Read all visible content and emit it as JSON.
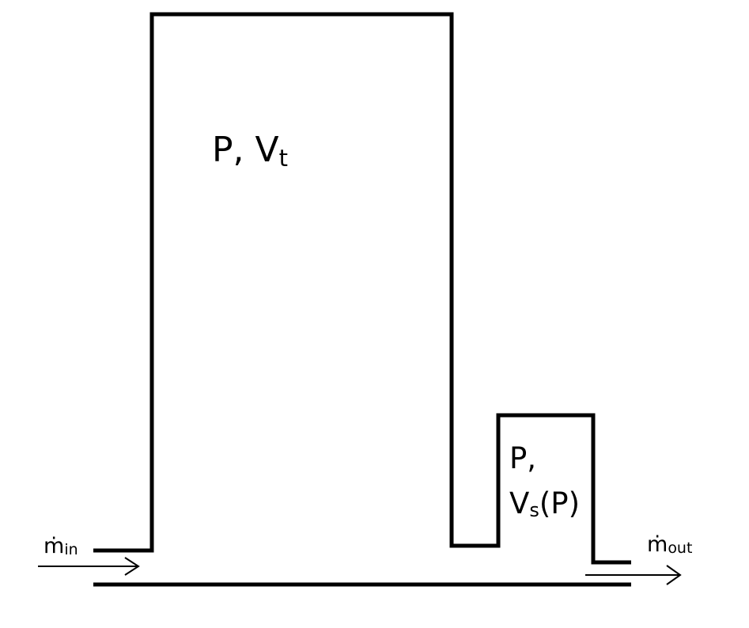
{
  "colors": {
    "stroke": "#000000",
    "background": "#ffffff"
  },
  "tank_label": {
    "main": "P, V",
    "sub": "t"
  },
  "small_vessel_label": {
    "line1": "P,",
    "line2_main": "V",
    "line2_sub": "s",
    "line2_rest": "(P)"
  },
  "inlet_label": {
    "symbol": "ṁ",
    "sub": "in"
  },
  "outlet_label": {
    "symbol": "ṁ",
    "sub": "out"
  }
}
